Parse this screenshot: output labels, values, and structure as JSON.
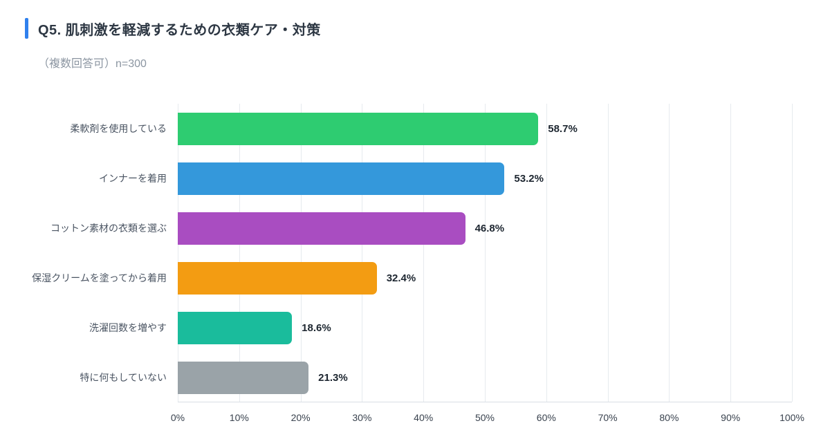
{
  "header": {
    "title": "Q5. 肌刺激を軽減するための衣類ケア・対策",
    "subtitle": "（複数回答可）n=300",
    "accent_color": "#2f80ed"
  },
  "chart_data": {
    "type": "bar",
    "orientation": "horizontal",
    "title": "Q5. 肌刺激を軽減するための衣類ケア・対策",
    "subtitle": "（複数回答可）n=300",
    "sample_size": "n=300",
    "categories": [
      "柔軟剤を使用している",
      "インナーを着用",
      "コットン素材の衣類を選ぶ",
      "保湿クリームを塗ってから着用",
      "洗濯回数を増やす",
      "特に何もしていない"
    ],
    "values": [
      58.7,
      53.2,
      46.8,
      32.4,
      18.6,
      21.3
    ],
    "value_labels": [
      "58.7%",
      "53.2%",
      "46.8%",
      "32.4%",
      "18.6%",
      "21.3%"
    ],
    "bar_colors": [
      "#2ecc71",
      "#3498db",
      "#a94dc1",
      "#f39c12",
      "#1abc9c",
      "#9aa3a8"
    ],
    "xlim": [
      0,
      100
    ],
    "x_ticks": [
      "0%",
      "10%",
      "20%",
      "30%",
      "40%",
      "50%",
      "60%",
      "70%",
      "80%",
      "90%",
      "100%"
    ],
    "x_tick_values": [
      0,
      10,
      20,
      30,
      40,
      50,
      60,
      70,
      80,
      90,
      100
    ],
    "grid": true,
    "legend": false,
    "grid_color": "#e6eaee",
    "axis_color": "#d8dee5"
  }
}
